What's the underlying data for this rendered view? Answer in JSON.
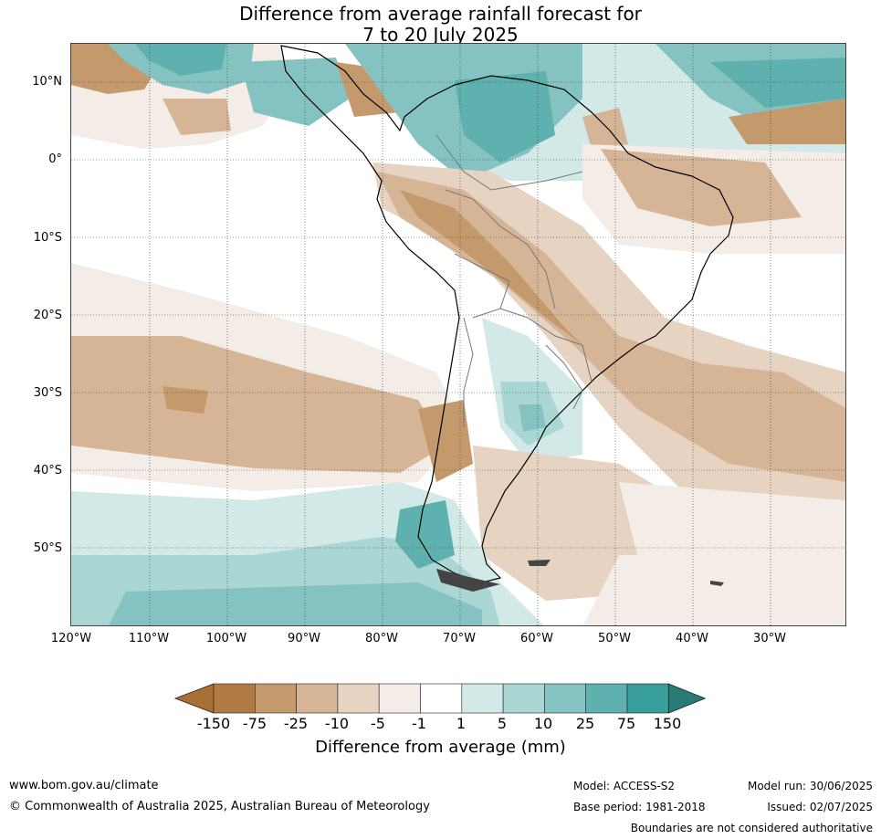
{
  "title": {
    "line1": "Difference from average rainfall forecast for",
    "line2": "7 to 20 July 2025"
  },
  "axes": {
    "lat_labels": [
      "10°N",
      "0°",
      "10°S",
      "20°S",
      "30°S",
      "40°S",
      "50°S"
    ],
    "lon_labels": [
      "120°W",
      "110°W",
      "100°W",
      "90°W",
      "80°W",
      "70°W",
      "60°W",
      "50°W",
      "40°W",
      "30°W"
    ]
  },
  "colorbar": {
    "ticks": [
      "-150",
      "-75",
      "-25",
      "-10",
      "-5",
      "-1",
      "1",
      "5",
      "10",
      "25",
      "75",
      "150"
    ],
    "colors": [
      "#a86f35",
      "#b07a42",
      "#c49a6c",
      "#d5b596",
      "#e6d3c2",
      "#f4ece6",
      "#ffffff",
      "#d3e9e8",
      "#aad6d4",
      "#84c3c1",
      "#5fb1af",
      "#379e9b",
      "#2a7a78"
    ],
    "label": "Difference from average (mm)"
  },
  "footer": {
    "website": "www.bom.gov.au/climate",
    "copyright": "© Commonwealth of Australia 2025, Australian Bureau of Meteorology",
    "model": "Model: ACCESS-S2",
    "base_period": "Base period: 1981-2018",
    "model_run": "Model run: 30/06/2025",
    "issued": "Issued: 02/07/2025",
    "disclaimer": "Boundaries are not considered authoritative"
  }
}
